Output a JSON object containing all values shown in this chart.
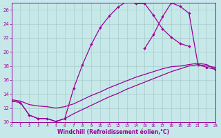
{
  "xlabel": "Windchill (Refroidissement éolien,°C)",
  "bg_color": "#c6e8e8",
  "line_color": "#990099",
  "grid_color": "#a8cccc",
  "xlim": [
    0,
    23
  ],
  "ylim": [
    10,
    27
  ],
  "xtick_vals": [
    0,
    1,
    2,
    3,
    4,
    5,
    6,
    7,
    8,
    9,
    10,
    11,
    12,
    13,
    14,
    15,
    16,
    17,
    18,
    19,
    20,
    21,
    22,
    23
  ],
  "ytick_vals": [
    10,
    12,
    14,
    16,
    18,
    20,
    22,
    24,
    26
  ],
  "curve_main_x": [
    0,
    1,
    2,
    3,
    4,
    5,
    6,
    7,
    8,
    9,
    10,
    11,
    12,
    13,
    14,
    15,
    16,
    17,
    18,
    19,
    20
  ],
  "curve_main_y": [
    13.0,
    12.8,
    11.0,
    10.5,
    10.5,
    10.1,
    10.5,
    14.8,
    18.2,
    21.1,
    23.5,
    25.1,
    26.4,
    27.2,
    26.9,
    26.9,
    25.2,
    23.3,
    22.1,
    21.2,
    20.8
  ],
  "curve_mid_x": [
    0,
    1,
    2,
    3,
    4,
    5,
    6,
    7,
    8,
    9,
    10,
    11,
    12,
    13,
    14,
    15,
    16,
    17,
    18,
    19,
    20,
    21,
    22,
    23
  ],
  "curve_mid_y": [
    13.0,
    12.8,
    11.0,
    10.5,
    10.5,
    10.1,
    10.5,
    11.2,
    11.8,
    12.4,
    13.0,
    13.6,
    14.1,
    14.7,
    15.2,
    15.7,
    16.2,
    16.7,
    17.2,
    17.6,
    18.0,
    18.2,
    18.0,
    17.8
  ],
  "curve_upper2_x": [
    0,
    1,
    2,
    3,
    4,
    5,
    6,
    7,
    8,
    9,
    10,
    11,
    12,
    13,
    14,
    15,
    16,
    17,
    18,
    19,
    20,
    21,
    22,
    23
  ],
  "curve_upper2_y": [
    13.2,
    13.0,
    12.5,
    12.3,
    12.2,
    12.0,
    12.2,
    12.6,
    13.2,
    13.8,
    14.3,
    14.9,
    15.4,
    15.9,
    16.4,
    16.8,
    17.2,
    17.6,
    17.9,
    18.0,
    18.2,
    18.4,
    18.2,
    17.5
  ],
  "curve_right_x": [
    15,
    16,
    17,
    18,
    19,
    20,
    21,
    22,
    23
  ],
  "curve_right_y": [
    20.5,
    22.5,
    25.0,
    27.0,
    26.5,
    25.5,
    18.2,
    17.8,
    17.5
  ]
}
